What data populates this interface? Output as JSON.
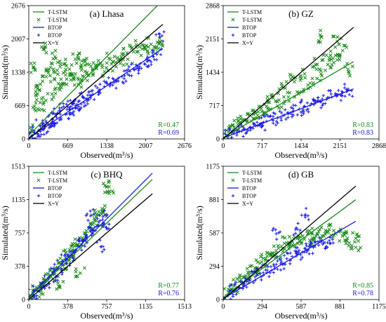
{
  "chart_data": [
    {
      "type": "scatter",
      "title": "(a) Lhasa",
      "xlabel": "Observed(m³/s)",
      "ylabel": "Simulated(m³/s)",
      "xlim": [
        0,
        2676
      ],
      "ylim": [
        0,
        2676
      ],
      "xticks": [
        "0",
        "669",
        "1338",
        "2007",
        "2676"
      ],
      "yticks": [
        "0",
        "669",
        "1338",
        "2007",
        "2676"
      ],
      "legend": [
        "T-LSTM",
        "T-LSTM",
        "BTOP",
        "BTOP",
        "X=Y"
      ],
      "legend_position": "top-left",
      "r_labels": [
        "R=0.47",
        "R=0.69"
      ],
      "obs_max": 2300,
      "series": [
        {
          "name": "T-LSTM",
          "marker": "x",
          "color": "#1a8a1a",
          "fit": {
            "slope": 1.18,
            "intercept": 70
          },
          "points": [
            [
              50,
              150
            ],
            [
              100,
              600
            ],
            [
              150,
              900
            ],
            [
              200,
              1100
            ],
            [
              250,
              700
            ],
            [
              300,
              1250
            ],
            [
              350,
              1400
            ],
            [
              400,
              900
            ],
            [
              450,
              1650
            ],
            [
              500,
              1300
            ],
            [
              550,
              1100
            ],
            [
              600,
              1500
            ],
            [
              650,
              1200
            ],
            [
              700,
              1400
            ],
            [
              750,
              1300
            ],
            [
              800,
              1600
            ],
            [
              850,
              1100
            ],
            [
              900,
              1450
            ],
            [
              950,
              1250
            ],
            [
              1000,
              1500
            ],
            [
              1100,
              1400
            ],
            [
              1200,
              1500
            ],
            [
              1300,
              1350
            ],
            [
              1400,
              1600
            ],
            [
              1500,
              1450
            ],
            [
              1600,
              1700
            ],
            [
              1700,
              1600
            ],
            [
              1800,
              1750
            ],
            [
              1900,
              1850
            ],
            [
              2000,
              1800
            ],
            [
              2100,
              1900
            ],
            [
              2200,
              1850
            ],
            [
              2250,
              1950
            ],
            [
              100,
              1400
            ],
            [
              250,
              1800
            ]
          ]
        },
        {
          "name": "BTOP",
          "marker": "+",
          "color": "#1a1ae6",
          "fit": {
            "slope": 0.78,
            "intercept": 20
          },
          "points": [
            [
              50,
              60
            ],
            [
              100,
              120
            ],
            [
              150,
              100
            ],
            [
              200,
              250
            ],
            [
              250,
              180
            ],
            [
              300,
              330
            ],
            [
              350,
              280
            ],
            [
              400,
              400
            ],
            [
              450,
              300
            ],
            [
              500,
              520
            ],
            [
              550,
              420
            ],
            [
              600,
              650
            ],
            [
              650,
              500
            ],
            [
              700,
              600
            ],
            [
              750,
              700
            ],
            [
              800,
              620
            ],
            [
              850,
              750
            ],
            [
              900,
              700
            ],
            [
              950,
              820
            ],
            [
              1000,
              760
            ],
            [
              1100,
              900
            ],
            [
              1200,
              950
            ],
            [
              1300,
              1050
            ],
            [
              1400,
              1100
            ],
            [
              1500,
              1150
            ],
            [
              1600,
              1250
            ],
            [
              1700,
              1300
            ],
            [
              1800,
              1400
            ],
            [
              1900,
              1450
            ],
            [
              2000,
              1500
            ],
            [
              2100,
              1550
            ],
            [
              2200,
              1700
            ],
            [
              2250,
              2050
            ]
          ]
        }
      ]
    },
    {
      "type": "scatter",
      "title": "(b) GZ",
      "xlabel": "Observed(m³/s)",
      "ylabel": "Simulated(m³/s)",
      "xlim": [
        0,
        2868
      ],
      "ylim": [
        0,
        2868
      ],
      "xticks": [
        "0",
        "717",
        "1434",
        "2151",
        "2868"
      ],
      "yticks": [
        "0",
        "717",
        "1434",
        "2151",
        "2868"
      ],
      "legend": [
        "T-LSTM",
        "T-LSTM",
        "BTOP",
        "BTOP",
        "X=Y"
      ],
      "legend_position": "top-left",
      "r_labels": [
        "R=0.83",
        "R=0.83"
      ],
      "obs_max": 2400,
      "series": [
        {
          "name": "T-LSTM",
          "marker": "x",
          "color": "#1a8a1a",
          "fit": {
            "slope": 0.68,
            "intercept": 30
          },
          "points": [
            [
              100,
              150
            ],
            [
              200,
              250
            ],
            [
              300,
              350
            ],
            [
              400,
              400
            ],
            [
              500,
              500
            ],
            [
              600,
              550
            ],
            [
              700,
              650
            ],
            [
              800,
              700
            ],
            [
              900,
              900
            ],
            [
              1000,
              800
            ],
            [
              1100,
              1100
            ],
            [
              1200,
              900
            ],
            [
              1300,
              1300
            ],
            [
              1400,
              1000
            ],
            [
              1500,
              1400
            ],
            [
              1600,
              1200
            ],
            [
              1700,
              1600
            ],
            [
              1800,
              1400
            ],
            [
              1900,
              1800
            ],
            [
              2000,
              1600
            ],
            [
              2100,
              1700
            ],
            [
              2200,
              1900
            ],
            [
              2300,
              1500
            ],
            [
              1800,
              2200
            ],
            [
              2100,
              2100
            ]
          ]
        },
        {
          "name": "BTOP",
          "marker": "+",
          "color": "#1a1ae6",
          "fit": {
            "slope": 0.44,
            "intercept": 20
          },
          "points": [
            [
              100,
              80
            ],
            [
              200,
              120
            ],
            [
              300,
              160
            ],
            [
              400,
              200
            ],
            [
              500,
              250
            ],
            [
              600,
              280
            ],
            [
              700,
              330
            ],
            [
              800,
              380
            ],
            [
              900,
              420
            ],
            [
              1000,
              450
            ],
            [
              1100,
              500
            ],
            [
              1200,
              560
            ],
            [
              1300,
              600
            ],
            [
              1400,
              640
            ],
            [
              1500,
              700
            ],
            [
              1600,
              720
            ],
            [
              1700,
              780
            ],
            [
              1800,
              800
            ],
            [
              1900,
              850
            ],
            [
              2000,
              900
            ],
            [
              2100,
              950
            ],
            [
              2200,
              1000
            ],
            [
              2300,
              1050
            ]
          ]
        }
      ]
    },
    {
      "type": "scatter",
      "title": "(c) BHQ",
      "xlabel": "Observed(m³/s)",
      "ylabel": "Simulated(m³/s)",
      "xlim": [
        0,
        1513
      ],
      "ylim": [
        0,
        1513
      ],
      "xticks": [
        "0",
        "378",
        "757",
        "1135",
        "1513"
      ],
      "yticks": [
        "0",
        "378",
        "757",
        "1135",
        "1513"
      ],
      "legend": [
        "T-LSTM",
        "T-LSTM",
        "BTOP",
        "BTOP",
        "X=Y"
      ],
      "legend_position": "top-left",
      "r_labels": [
        "R=0.77",
        "R=0.76"
      ],
      "obs_max": 1200,
      "series": [
        {
          "name": "T-LSTM",
          "marker": "x",
          "color": "#1a8a1a",
          "fit": {
            "slope": 1.12,
            "intercept": 20
          },
          "points": [
            [
              40,
              60
            ],
            [
              80,
              120
            ],
            [
              120,
              100
            ],
            [
              160,
              220
            ],
            [
              200,
              260
            ],
            [
              240,
              300
            ],
            [
              280,
              350
            ],
            [
              320,
              420
            ],
            [
              360,
              480
            ],
            [
              400,
              500
            ],
            [
              440,
              560
            ],
            [
              480,
              620
            ],
            [
              520,
              700
            ],
            [
              560,
              780
            ],
            [
              600,
              850
            ],
            [
              640,
              900
            ],
            [
              680,
              960
            ],
            [
              720,
              1000
            ],
            [
              760,
              1280
            ],
            [
              780,
              1280
            ],
            [
              500,
              300
            ],
            [
              300,
              150
            ]
          ]
        },
        {
          "name": "BTOP",
          "marker": "+",
          "color": "#1a1ae6",
          "fit": {
            "slope": 1.17,
            "intercept": 30
          },
          "points": [
            [
              40,
              50
            ],
            [
              80,
              100
            ],
            [
              120,
              150
            ],
            [
              160,
              200
            ],
            [
              200,
              250
            ],
            [
              240,
              290
            ],
            [
              280,
              340
            ],
            [
              320,
              400
            ],
            [
              360,
              450
            ],
            [
              400,
              480
            ],
            [
              440,
              540
            ],
            [
              480,
              600
            ],
            [
              520,
              660
            ],
            [
              560,
              720
            ],
            [
              600,
              780
            ],
            [
              640,
              820
            ],
            [
              680,
              880
            ],
            [
              720,
              940
            ],
            [
              760,
              800
            ],
            [
              600,
              950
            ],
            [
              700,
              600
            ]
          ]
        }
      ]
    },
    {
      "type": "scatter",
      "title": "(d) GB",
      "xlabel": "Observed(m³/s)",
      "ylabel": "Simulated(m³/s)",
      "xlim": [
        0,
        1175
      ],
      "ylim": [
        0,
        1175
      ],
      "xticks": [
        "0",
        "294",
        "587",
        "881",
        "1175"
      ],
      "yticks": [
        "0",
        "294",
        "587",
        "881",
        "1175"
      ],
      "legend": [
        "T-LSTM",
        "T-LSTM",
        "BTOP",
        "BTOP",
        "X=Y"
      ],
      "legend_position": "top-left",
      "r_labels": [
        "R=0.85",
        "R=0.78"
      ],
      "obs_max": 1000,
      "series": [
        {
          "name": "T-LSTM",
          "marker": "x",
          "color": "#1a8a1a",
          "fit": {
            "slope": 0.86,
            "intercept": 20
          },
          "points": [
            [
              40,
              60
            ],
            [
              80,
              120
            ],
            [
              120,
              160
            ],
            [
              160,
              200
            ],
            [
              200,
              240
            ],
            [
              240,
              280
            ],
            [
              280,
              320
            ],
            [
              320,
              360
            ],
            [
              360,
              400
            ],
            [
              400,
              430
            ],
            [
              440,
              470
            ],
            [
              480,
              500
            ],
            [
              520,
              520
            ],
            [
              560,
              540
            ],
            [
              600,
              560
            ],
            [
              640,
              580
            ],
            [
              680,
              520
            ],
            [
              720,
              600
            ],
            [
              760,
              560
            ],
            [
              800,
              620
            ],
            [
              850,
              580
            ],
            [
              900,
              560
            ],
            [
              950,
              500
            ],
            [
              1000,
              460
            ],
            [
              1000,
              540
            ]
          ]
        },
        {
          "name": "BTOP",
          "marker": "+",
          "color": "#1a1ae6",
          "fit": {
            "slope": 0.68,
            "intercept": 10
          },
          "points": [
            [
              40,
              40
            ],
            [
              80,
              80
            ],
            [
              120,
              100
            ],
            [
              160,
              140
            ],
            [
              200,
              170
            ],
            [
              240,
              200
            ],
            [
              280,
              230
            ],
            [
              320,
              260
            ],
            [
              360,
              290
            ],
            [
              400,
              310
            ],
            [
              440,
              330
            ],
            [
              480,
              360
            ],
            [
              520,
              380
            ],
            [
              560,
              400
            ],
            [
              600,
              420
            ],
            [
              640,
              440
            ],
            [
              680,
              460
            ],
            [
              720,
              480
            ],
            [
              760,
              500
            ],
            [
              800,
              520
            ],
            [
              560,
              620
            ],
            [
              400,
              580
            ],
            [
              620,
              750
            ]
          ]
        }
      ]
    }
  ]
}
